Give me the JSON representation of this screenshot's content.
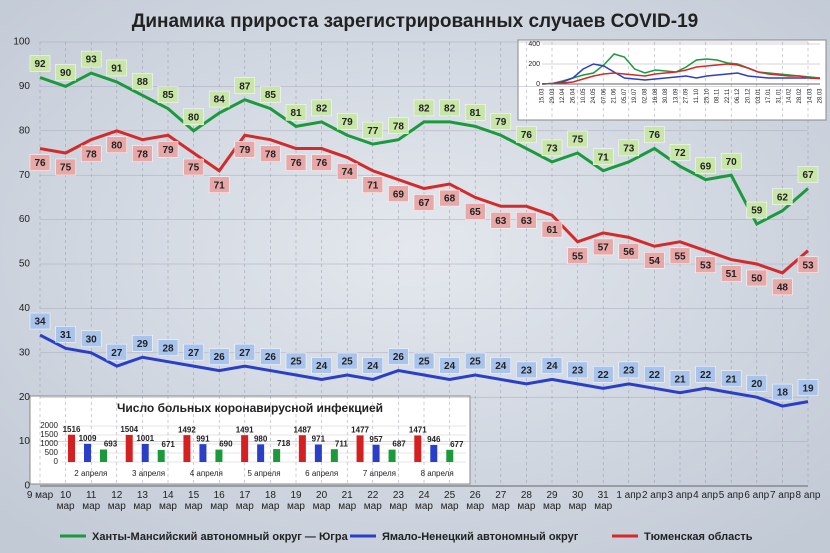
{
  "chart_data": [
    {
      "type": "line",
      "title": "Динамика прироста зарегистрированных случаев COVID-19",
      "categories": [
        "9 мар",
        "10 мар",
        "11 мар",
        "12 мар",
        "13 мар",
        "14 мар",
        "15 мар",
        "16 мар",
        "17 мар",
        "18 мар",
        "19 мар",
        "20 мар",
        "21 мар",
        "22 мар",
        "23 мар",
        "24 мар",
        "25 мар",
        "26 мар",
        "27 мар",
        "28 мар",
        "29 мар",
        "30 мар",
        "31 мар",
        "1 апр",
        "2 апр",
        "3 апр",
        "4 апр",
        "5 апр",
        "6 апр",
        "7 апр",
        "8 апр"
      ],
      "series": [
        {
          "name": "Ханты-Мансийский автономный округ — Югра",
          "color": "#1a9a3a",
          "label_color": "#c8e6a8",
          "label_pos": "above",
          "values": [
            92,
            90,
            93,
            91,
            88,
            85,
            80,
            84,
            87,
            85,
            81,
            82,
            79,
            77,
            78,
            82,
            82,
            81,
            79,
            76,
            73,
            75,
            71,
            73,
            76,
            72,
            69,
            70,
            59,
            62,
            67
          ]
        },
        {
          "name": "Ямало-Ненецкий автономный округ",
          "color": "#2a3fc8",
          "label_color": "#a8c4ec",
          "label_pos": "above",
          "values": [
            34,
            31,
            30,
            27,
            29,
            28,
            27,
            26,
            27,
            26,
            25,
            24,
            25,
            24,
            26,
            25,
            24,
            25,
            24,
            23,
            24,
            23,
            22,
            23,
            22,
            21,
            22,
            21,
            20,
            18,
            19
          ]
        },
        {
          "name": "Тюменская область",
          "color": "#d42a2a",
          "label_color": "#e8a8a8",
          "label_pos": "below",
          "values": [
            76,
            75,
            78,
            80,
            78,
            79,
            75,
            71,
            79,
            78,
            76,
            76,
            74,
            71,
            69,
            67,
            68,
            65,
            63,
            63,
            61,
            55,
            57,
            56,
            54,
            55,
            53,
            51,
            50,
            48,
            53
          ]
        }
      ],
      "ylim": [
        0,
        100
      ],
      "yticks": [
        0,
        10,
        20,
        30,
        40,
        50,
        60,
        70,
        80,
        90,
        100
      ],
      "grid": true
    },
    {
      "type": "line",
      "categories": [
        "15.03",
        "29.03",
        "12.04",
        "26.04",
        "10.05",
        "24.05",
        "07.06",
        "21.06",
        "05.07",
        "19.07",
        "02.08",
        "16.08",
        "30.08",
        "13.09",
        "27.09",
        "11.10",
        "25.10",
        "08.11",
        "22.11",
        "06.12",
        "20.12",
        "03.01",
        "17.01",
        "31.01",
        "14.02",
        "28.02",
        "14.03",
        "28.03"
      ],
      "series": [
        {
          "color": "#1a9a3a",
          "values": [
            0,
            5,
            30,
            60,
            90,
            110,
            190,
            300,
            270,
            150,
            110,
            140,
            130,
            120,
            170,
            240,
            250,
            240,
            210,
            200,
            160,
            120,
            110,
            100,
            90,
            80,
            70,
            60
          ]
        },
        {
          "color": "#2a3fc8",
          "values": [
            0,
            5,
            20,
            60,
            150,
            200,
            180,
            120,
            60,
            50,
            40,
            50,
            60,
            70,
            80,
            60,
            80,
            90,
            100,
            110,
            80,
            70,
            60,
            60,
            60,
            60,
            60,
            55
          ]
        },
        {
          "color": "#d42a2a",
          "values": [
            0,
            5,
            10,
            20,
            50,
            80,
            100,
            110,
            100,
            90,
            80,
            100,
            110,
            120,
            140,
            170,
            180,
            190,
            200,
            190,
            160,
            120,
            100,
            90,
            80,
            80,
            60,
            55
          ]
        }
      ],
      "ylim": [
        0,
        400
      ],
      "yticks": [
        0,
        200,
        400
      ]
    },
    {
      "type": "bar",
      "title": "Число больных коронавирусной инфекцией",
      "categories": [
        "2 апреля",
        "3 апреля",
        "4 апреля",
        "5 апреля",
        "6 апреля",
        "7 апреля",
        "8 апреля"
      ],
      "series": [
        {
          "color": "#d42020",
          "values": [
            1516,
            1504,
            1492,
            1491,
            1487,
            1477,
            1471
          ]
        },
        {
          "color": "#2a3fc8",
          "values": [
            1009,
            1001,
            991,
            980,
            971,
            957,
            946
          ]
        },
        {
          "color": "#1a9a3a",
          "values": [
            693,
            671,
            690,
            718,
            711,
            687,
            677
          ]
        }
      ],
      "ylim": [
        0,
        2000
      ],
      "yticks": [
        0,
        500,
        1000,
        1500,
        2000
      ]
    }
  ]
}
